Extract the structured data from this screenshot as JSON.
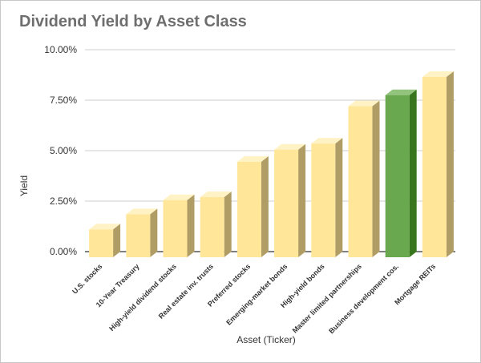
{
  "chart_data": {
    "type": "bar",
    "title": "Dividend Yield by Asset Class",
    "xlabel": "Asset (Ticker)",
    "ylabel": "Yield",
    "ylim": [
      0,
      10
    ],
    "yticks": [
      0,
      2.5,
      5,
      7.5,
      10
    ],
    "ytick_labels": [
      "0.00%",
      "2.50%",
      "5.00%",
      "7.50%",
      "10.00%"
    ],
    "grid": true,
    "legend": "none",
    "categories": [
      "U.S. stocks",
      "10-Year Treasury",
      "High-yield dividend stocks",
      "Real estate inv. trusts",
      "Preferred stocks",
      "Emerging-market bonds",
      "High-yield bonds",
      "Master limited partnerships",
      "Business development cos.",
      "Mortgage REITs"
    ],
    "values": [
      1.1,
      1.85,
      2.55,
      2.7,
      4.45,
      5.05,
      5.35,
      7.2,
      7.75,
      8.65
    ],
    "colors": {
      "default_front": "#ffe699",
      "default_top": "#fff2c4",
      "default_side": "#b09d66",
      "highlight_front": "#6aa84f",
      "highlight_top": "#93c47d",
      "highlight_side": "#38761d",
      "grid": "#cccccc",
      "axis": "#333333"
    },
    "highlight_index": 8
  }
}
